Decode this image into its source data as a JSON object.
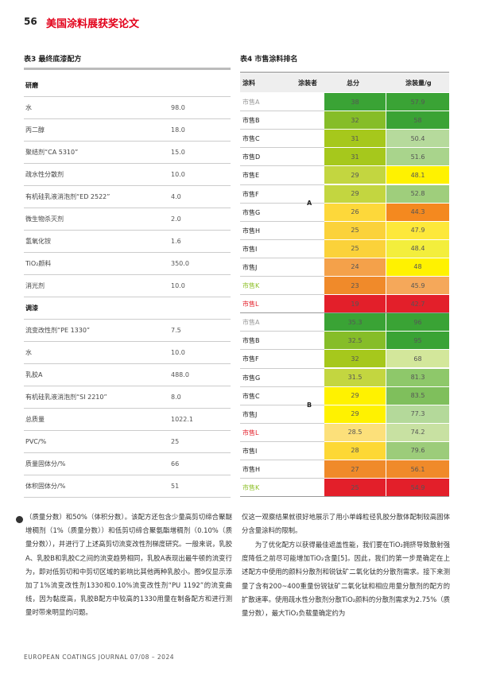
{
  "header": {
    "page_number": "56",
    "title": "美国涂料展获奖论文"
  },
  "table3": {
    "title": "表3 最终底漆配方",
    "rows": [
      [
        "研磨"
      ],
      [
        "水",
        "98.0"
      ],
      [
        "丙二醇",
        "18.0"
      ],
      [
        "聚结剂“CA 5310”",
        "15.0"
      ],
      [
        "疏水性分散剂",
        "10.0"
      ],
      [
        "有机硅乳液消泡剂“ED 2522”",
        "4.0"
      ],
      [
        "微生物杀灭剂",
        "2.0"
      ],
      [
        "氢氧化铵",
        "1.6"
      ],
      [
        "TiO₂颜料",
        "350.0"
      ],
      [
        "消光剂",
        "10.0"
      ],
      [
        "调漆"
      ],
      [
        "流变改性剂“PE 1330”",
        "7.5"
      ],
      [
        "水",
        "10.0"
      ],
      [
        "乳胶A",
        "488.0"
      ],
      [
        "有机硅乳液消泡剂“SI 2210”",
        "8.0"
      ],
      [
        "总质量",
        "1022.1"
      ],
      [
        "PVC/%",
        "25"
      ],
      [
        "质量固体分/%",
        "66"
      ],
      [
        "体积固体分/%",
        "51"
      ]
    ]
  },
  "table4": {
    "title": "表4 市售涂料排名",
    "columns": [
      "涂料",
      "涂装者",
      "总分",
      "涂装量/g"
    ],
    "groups": [
      {
        "applicator": "A",
        "rows": [
          {
            "name": "市售A",
            "name_color": "#999999",
            "score": "38",
            "score_color": "#3aa335",
            "amount": "57.9",
            "amount_color": "#3aa335"
          },
          {
            "name": "市售B",
            "name_color": "#222222",
            "score": "32",
            "score_color": "#86bd28",
            "amount": "58",
            "amount_color": "#3aa335"
          },
          {
            "name": "市售C",
            "name_color": "#222222",
            "score": "31",
            "score_color": "#a6c81c",
            "amount": "50.4",
            "amount_color": "#b6da9c"
          },
          {
            "name": "市售D",
            "name_color": "#222222",
            "score": "31",
            "score_color": "#a6c81c",
            "amount": "51.6",
            "amount_color": "#a9d48c"
          },
          {
            "name": "市售E",
            "name_color": "#222222",
            "score": "29",
            "score_color": "#c3d640",
            "amount": "48.1",
            "amount_color": "#fff200"
          },
          {
            "name": "市售F",
            "name_color": "#222222",
            "score": "29",
            "score_color": "#c3d640",
            "amount": "52.8",
            "amount_color": "#9fce7c"
          },
          {
            "name": "市售G",
            "name_color": "#222222",
            "score": "26",
            "score_color": "#fdd83a",
            "amount": "44.3",
            "amount_color": "#f4891f"
          },
          {
            "name": "市售H",
            "name_color": "#222222",
            "score": "25",
            "score_color": "#fbd23a",
            "amount": "47.9",
            "amount_color": "#fde83a"
          },
          {
            "name": "市售I",
            "name_color": "#222222",
            "score": "25",
            "score_color": "#fbd23a",
            "amount": "48.4",
            "amount_color": "#f3ee3c"
          },
          {
            "name": "市售J",
            "name_color": "#222222",
            "score": "24",
            "score_color": "#f4a14a",
            "amount": "48",
            "amount_color": "#fff200"
          },
          {
            "name": "市售K",
            "name_color": "#8cbf26",
            "score": "23",
            "score_color": "#f08a2a",
            "amount": "45.9",
            "amount_color": "#f5a85a"
          },
          {
            "name": "市售L",
            "name_color": "#e31f2a",
            "score": "19",
            "score_color": "#e31f2a",
            "amount": "42.7",
            "amount_color": "#e31f2a"
          }
        ]
      },
      {
        "applicator": "B",
        "rows": [
          {
            "name": "市售A",
            "name_color": "#999999",
            "score": "35.3",
            "score_color": "#3aa335",
            "amount": "96",
            "amount_color": "#3aa335"
          },
          {
            "name": "市售B",
            "name_color": "#222222",
            "score": "32.5",
            "score_color": "#86bd28",
            "amount": "95",
            "amount_color": "#3aa335"
          },
          {
            "name": "市售F",
            "name_color": "#222222",
            "score": "32",
            "score_color": "#a6c81c",
            "amount": "68",
            "amount_color": "#d3e79b"
          },
          {
            "name": "市售G",
            "name_color": "#222222",
            "score": "31.5",
            "score_color": "#c3d640",
            "amount": "81.3",
            "amount_color": "#8ec86a"
          },
          {
            "name": "市售C",
            "name_color": "#222222",
            "score": "29",
            "score_color": "#fff200",
            "amount": "83.5",
            "amount_color": "#7fbf5c"
          },
          {
            "name": "市售J",
            "name_color": "#222222",
            "score": "29",
            "score_color": "#fff200",
            "amount": "77.3",
            "amount_color": "#b4d99a"
          },
          {
            "name": "市售L",
            "name_color": "#e31f2a",
            "score": "28.5",
            "score_color": "#fce07a",
            "amount": "74.2",
            "amount_color": "#c8e1a2"
          },
          {
            "name": "市售I",
            "name_color": "#222222",
            "score": "28",
            "score_color": "#fdd835",
            "amount": "79.6",
            "amount_color": "#9ccc7a"
          },
          {
            "name": "市售H",
            "name_color": "#222222",
            "score": "27",
            "score_color": "#f08a2a",
            "amount": "56.1",
            "amount_color": "#f08a2a"
          },
          {
            "name": "市售K",
            "name_color": "#8cbf26",
            "score": "25",
            "score_color": "#e31f2a",
            "amount": "54.9",
            "amount_color": "#e31f2a"
          }
        ]
      }
    ]
  },
  "body": {
    "left": "（质量分数）和50%（体积分数）。该配方还包含少量高剪切缔合聚醚增稠剂（1%（质量分数））和低剪切缔合聚氨酯增稠剂（0.10%（质量分数）），并进行了上述高剪切流变改性剂梯度研究。一般来说，乳胶A、乳胶B和乳胶C之间的流变趋势相同，乳胶A表现出最牛顿的流变行为，即对低剪切和中剪切区域的影响比其他两种乳胶小。图9仅显示添加了1%流变改性剂1330和0.10%流变改性剂“PU 1192”的流变曲线，因为黏度高，乳胶B配方中较高的1330用量在制备配方和进行测量时带来明显的问题。",
    "right": [
      "仅这一观察结果就很好地展示了用小单峰粒径乳胶分散体配制较高固体分含量涂料的限制。",
      "为了优化配方以获得最佳遮盖性能，我们要在TiO₂拥挤导致散射强度降低之前尽可能增加TiO₂含量[5]。因此，我们的第一步是确定在上述配方中使用的颜料分散剂和锐钛矿二氧化钛的分散剂需求。接下来测量了含有200~400重量份锐钛矿二氧化钛和相应用量分散剂的配方的扩散速率。使用疏水性分散剂分散TiO₂颜料的分散剂需求为2.75%（质量分数），最大TiO₂负载量确定约为"
    ]
  },
  "footer": "EUROPEAN COATINGS JOURNAL 07/08 – 2024"
}
